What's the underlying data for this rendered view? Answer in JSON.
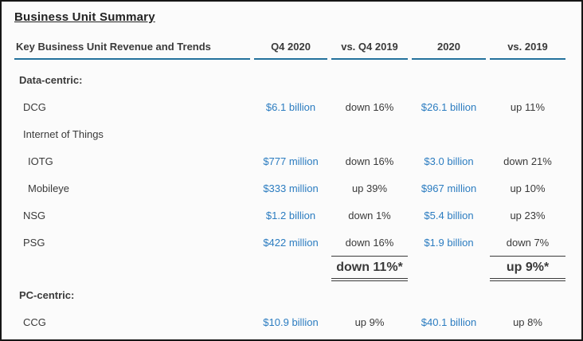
{
  "title": "Business Unit Summary",
  "colors": {
    "value_blue": "#2b7cc0",
    "header_rule_teal": "#24719c",
    "text_dark": "#3a3a3a",
    "frame_border": "#161616"
  },
  "table": {
    "headers": {
      "col0": "Key Business Unit Revenue and Trends",
      "col1": "Q4 2020",
      "col2": "vs. Q4 2019",
      "col3": "2020",
      "col4": "vs. 2019"
    },
    "rows": [
      {
        "label": "Data-centric:",
        "indent": 0,
        "bold": true,
        "values": [
          "",
          "",
          "",
          ""
        ]
      },
      {
        "label": "DCG",
        "indent": 1,
        "bold": false,
        "values": [
          "$6.1 billion",
          "down 16%",
          "$26.1 billion",
          "up 11%"
        ]
      },
      {
        "label": "Internet of Things",
        "indent": 1,
        "bold": false,
        "values": [
          "",
          "",
          "",
          ""
        ]
      },
      {
        "label": "IOTG",
        "indent": 2,
        "bold": false,
        "values": [
          "$777 million",
          "down 16%",
          "$3.0 billion",
          "down 21%"
        ]
      },
      {
        "label": "Mobileye",
        "indent": 2,
        "bold": false,
        "values": [
          "$333 million",
          "up 39%",
          "$967 million",
          "up 10%"
        ]
      },
      {
        "label": "NSG",
        "indent": 1,
        "bold": false,
        "values": [
          "$1.2 billion",
          "down 1%",
          "$5.4 billion",
          "up 23%"
        ]
      },
      {
        "label": "PSG",
        "indent": 1,
        "bold": false,
        "values": [
          "$422 million",
          "down 16%",
          "$1.9 billion",
          "down 7%"
        ]
      },
      {
        "label": "PC-centric:",
        "indent": 0,
        "bold": true,
        "values": [
          "",
          "",
          "",
          ""
        ]
      },
      {
        "label": "CCG",
        "indent": 1,
        "bold": false,
        "values": [
          "$10.9 billion",
          "up 9%",
          "$40.1 billion",
          "up 8%"
        ]
      }
    ],
    "totals": {
      "vs_q4_2019": "down 11%*",
      "vs_2019": "up 9%*"
    }
  }
}
